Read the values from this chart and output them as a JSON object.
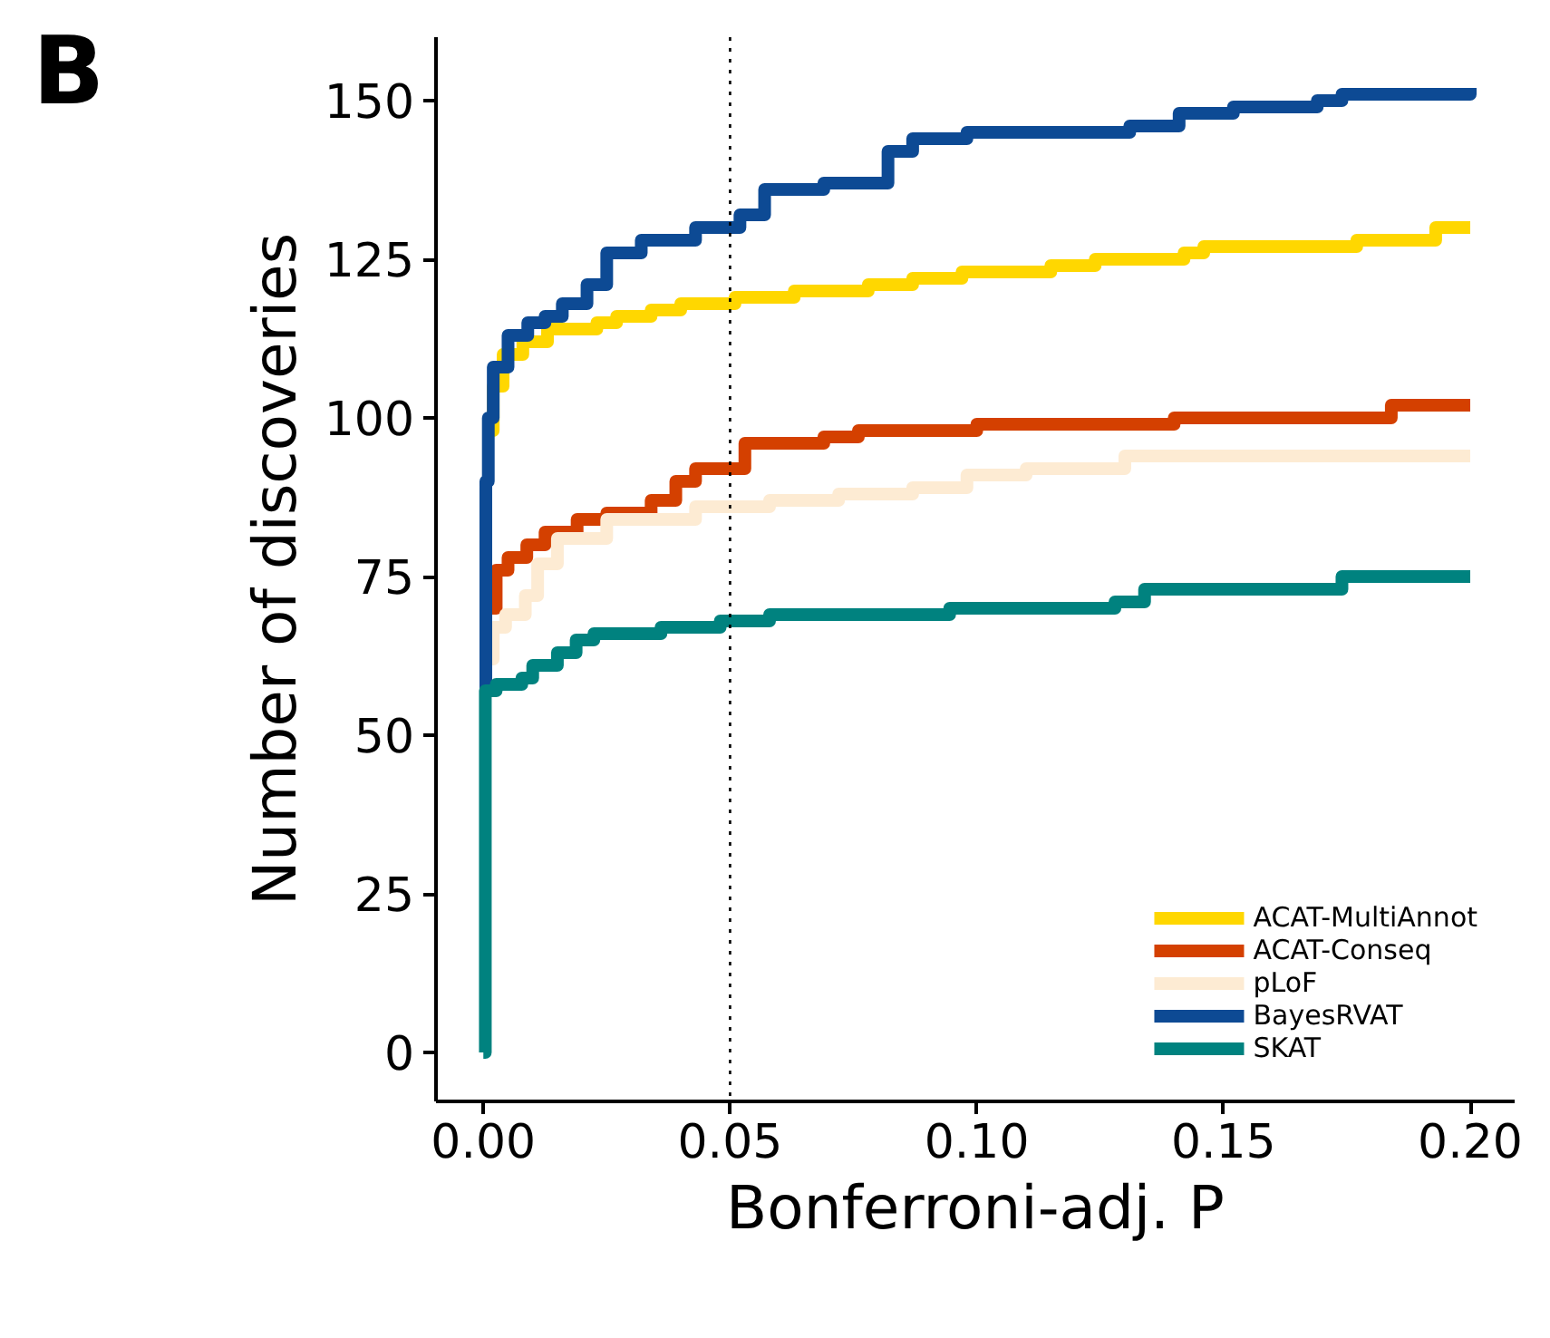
{
  "chart_data": {
    "type": "step",
    "xlabel": "Bonferroni-adj. P",
    "ylabel": "Number of discoveries",
    "annotations": [
      "B"
    ],
    "xlim": [
      -0.0096,
      0.209
    ],
    "ylim": [
      -7.7,
      160
    ],
    "xticks": [
      {
        "value": 0,
        "label": "0.00"
      },
      {
        "value": 0.05,
        "label": "0.05"
      },
      {
        "value": 0.1,
        "label": "0.10"
      },
      {
        "value": 0.15,
        "label": "0.15"
      },
      {
        "value": 0.2,
        "label": "0.20"
      }
    ],
    "yticks": [
      0,
      25,
      50,
      75,
      100,
      125,
      150
    ],
    "grid": false,
    "legend": "bottom right",
    "line_style": "solid",
    "ref_lines": [
      {
        "axis": "x",
        "value": 0.05,
        "line_style": "dotted",
        "color": "#000000"
      }
    ],
    "series": [
      {
        "name": "ACAT-MultiAnnot",
        "color": "#ffd700",
        "x": [
          0.0008,
          0.002,
          0.004,
          0.008,
          0.013,
          0.023,
          0.027,
          0.034,
          0.04,
          0.051,
          0.063,
          0.078,
          0.087,
          0.097,
          0.115,
          0.124,
          0.142,
          0.146,
          0.177,
          0.193,
          0.2
        ],
        "values": [
          98,
          105,
          110,
          112,
          114,
          115,
          116,
          117,
          118,
          119,
          120,
          121,
          122,
          123,
          124,
          125,
          126,
          127,
          128,
          130,
          130
        ]
      },
      {
        "name": "ACAT-Conseq",
        "color": "#d44000",
        "x": [
          0.0008,
          0.0026,
          0.005,
          0.0088,
          0.0125,
          0.019,
          0.025,
          0.034,
          0.039,
          0.043,
          0.053,
          0.069,
          0.076,
          0.1,
          0.14,
          0.184,
          0.2
        ],
        "values": [
          70,
          76,
          78,
          80,
          82,
          84,
          85,
          87,
          90,
          92,
          96,
          97,
          98,
          99,
          100,
          102,
          102
        ]
      },
      {
        "name": "pLoF",
        "color": "#fdebd3",
        "x": [
          0.0008,
          0.002,
          0.0045,
          0.0085,
          0.011,
          0.015,
          0.025,
          0.043,
          0.058,
          0.072,
          0.087,
          0.098,
          0.11,
          0.13,
          0.2
        ],
        "values": [
          62,
          67,
          69,
          72,
          77,
          81,
          84,
          86,
          87,
          88,
          89,
          91,
          92,
          94,
          94
        ]
      },
      {
        "name": "BayesRVAT",
        "color": "#0d4a94",
        "x": [
          0,
          0.0005,
          0.001,
          0.002,
          0.005,
          0.009,
          0.0125,
          0.016,
          0.021,
          0.025,
          0.032,
          0.043,
          0.052,
          0.057,
          0.069,
          0.082,
          0.087,
          0.098,
          0.131,
          0.141,
          0.152,
          0.169,
          0.174,
          0.2
        ],
        "values": [
          57,
          90,
          100,
          108,
          113,
          115,
          116,
          118,
          121,
          126,
          128,
          130,
          132,
          136,
          137,
          142,
          144,
          145,
          146,
          148,
          149,
          150,
          151,
          152
        ]
      },
      {
        "name": "SKAT",
        "color": "#00827f",
        "x": [
          0,
          0.0004,
          0.0026,
          0.0078,
          0.01,
          0.015,
          0.0188,
          0.0224,
          0.036,
          0.048,
          0.058,
          0.0945,
          0.128,
          0.134,
          0.174,
          0.2
        ],
        "values": [
          0,
          57,
          58,
          59,
          61,
          63,
          65,
          66,
          67,
          68,
          69,
          70,
          71,
          73,
          75,
          75
        ]
      }
    ]
  }
}
